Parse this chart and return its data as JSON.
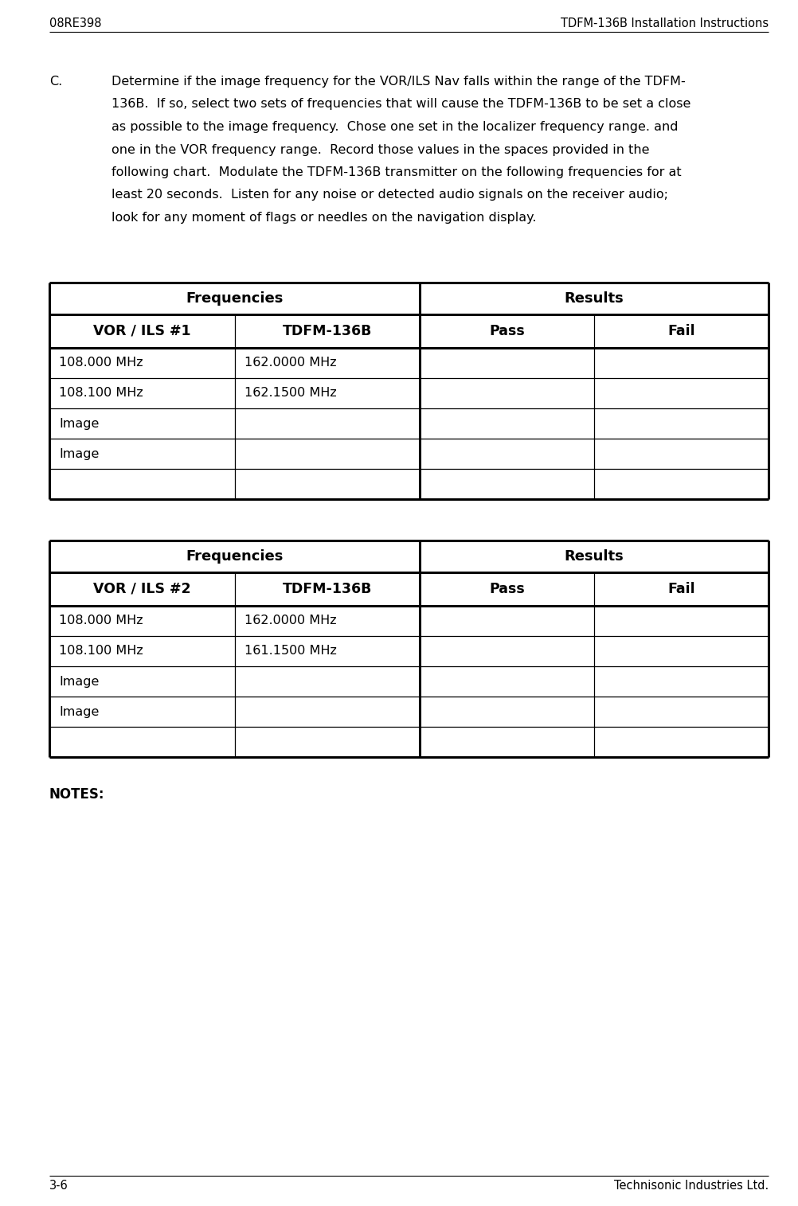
{
  "header_left": "08RE398",
  "header_right": "TDFM-136B Installation Instructions",
  "footer_left": "3-6",
  "footer_right": "Technisonic Industries Ltd.",
  "para_C": "C.",
  "para_lines": [
    "Determine if the image frequency for the VOR/ILS Nav falls within the range of the TDFM-",
    "136B.  If so, select two sets of frequencies that will cause the TDFM-136B to be set a close",
    "as possible to the image frequency.  Chose one set in the localizer frequency range. and",
    "one in the VOR frequency range.  Record those values in the spaces provided in the",
    "following chart.  Modulate the TDFM-136B transmitter on the following frequencies for at",
    "least 20 seconds.  Listen for any noise or detected audio signals on the receiver audio;",
    "look for any moment of flags or needles on the navigation display."
  ],
  "table1": {
    "header1": "Frequencies",
    "header2": "Results",
    "col1_header": "VOR / ILS #1",
    "col2_header": "TDFM-136B",
    "col3_header": "Pass",
    "col4_header": "Fail",
    "rows": [
      [
        "108.000 MHz",
        "162.0000 MHz",
        "",
        ""
      ],
      [
        "108.100 MHz",
        "162.1500 MHz",
        "",
        ""
      ],
      [
        "Image",
        "",
        "",
        ""
      ],
      [
        "Image",
        "",
        "",
        ""
      ],
      [
        "",
        "",
        "",
        ""
      ]
    ]
  },
  "table2": {
    "header1": "Frequencies",
    "header2": "Results",
    "col1_header": "VOR / ILS #2",
    "col2_header": "TDFM-136B",
    "col3_header": "Pass",
    "col4_header": "Fail",
    "rows": [
      [
        "108.000 MHz",
        "162.0000 MHz",
        "",
        ""
      ],
      [
        "108.100 MHz",
        "161.1500 MHz",
        "",
        ""
      ],
      [
        "Image",
        "",
        "",
        ""
      ],
      [
        "Image",
        "",
        "",
        ""
      ],
      [
        "",
        "",
        "",
        ""
      ]
    ]
  },
  "notes_label": "NOTES:",
  "bg_color": "#ffffff",
  "text_color": "#000000",
  "line_color": "#000000"
}
